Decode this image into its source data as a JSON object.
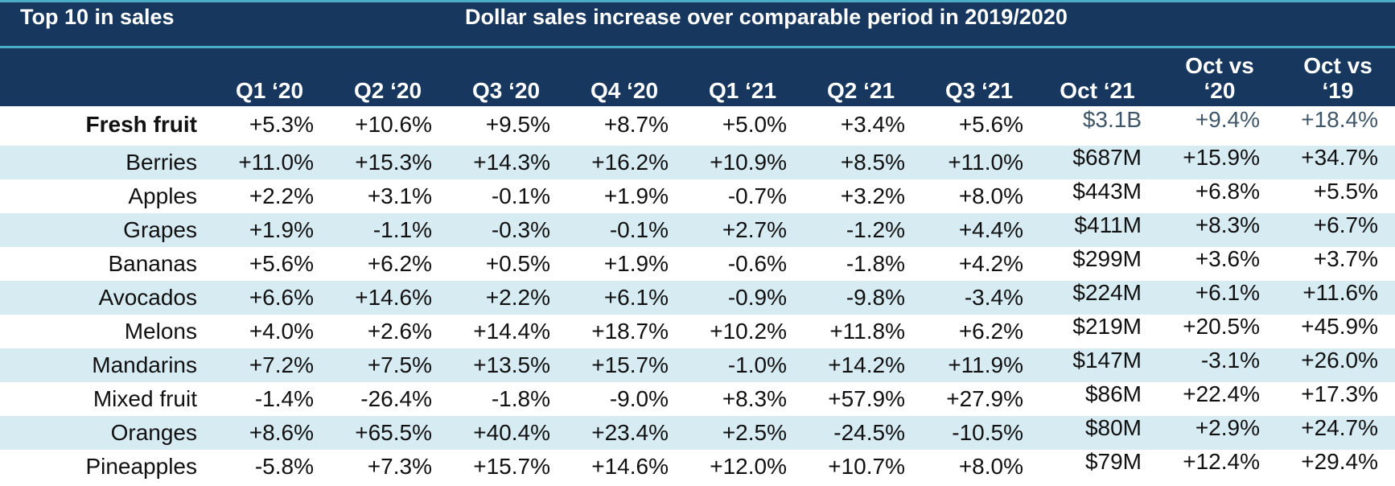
{
  "header": {
    "left_title": "Top 10 in sales",
    "main_title": "Dollar sales increase over comparable period in 2019/2020"
  },
  "colors": {
    "header_bg": "#17375e",
    "accent_line": "#4bacc6",
    "band": "#d7ebf2"
  },
  "chart_data": {
    "type": "table",
    "columns": [
      "Q1 ‘20",
      "Q2 ‘20",
      "Q3 ‘20",
      "Q4 ‘20",
      "Q1 ‘21",
      "Q2 ‘21",
      "Q3 ‘21",
      "Oct ‘21",
      "Oct vs ‘20",
      "Oct vs ‘19"
    ],
    "rows": [
      {
        "label": "Fresh fruit",
        "values": [
          "+5.3%",
          "+10.6%",
          "+9.5%",
          "+8.7%",
          "+5.0%",
          "+3.4%",
          "+5.6%",
          "$3.1B",
          "+9.4%",
          "+18.4%"
        ]
      },
      {
        "label": "Berries",
        "values": [
          "+11.0%",
          "+15.3%",
          "+14.3%",
          "+16.2%",
          "+10.9%",
          "+8.5%",
          "+11.0%",
          "$687M",
          "+15.9%",
          "+34.7%"
        ]
      },
      {
        "label": "Apples",
        "values": [
          "+2.2%",
          "+3.1%",
          "-0.1%",
          "+1.9%",
          "-0.7%",
          "+3.2%",
          "+8.0%",
          "$443M",
          "+6.8%",
          "+5.5%"
        ]
      },
      {
        "label": "Grapes",
        "values": [
          "+1.9%",
          "-1.1%",
          "-0.3%",
          "-0.1%",
          "+2.7%",
          "-1.2%",
          "+4.4%",
          "$411M",
          "+8.3%",
          "+6.7%"
        ]
      },
      {
        "label": "Bananas",
        "values": [
          "+5.6%",
          "+6.2%",
          "+0.5%",
          "+1.9%",
          "-0.6%",
          "-1.8%",
          "+4.2%",
          "$299M",
          "+3.6%",
          "+3.7%"
        ]
      },
      {
        "label": "Avocados",
        "values": [
          "+6.6%",
          "+14.6%",
          "+2.2%",
          "+6.1%",
          "-0.9%",
          "-9.8%",
          "-3.4%",
          "$224M",
          "+6.1%",
          "+11.6%"
        ]
      },
      {
        "label": "Melons",
        "values": [
          "+4.0%",
          "+2.6%",
          "+14.4%",
          "+18.7%",
          "+10.2%",
          "+11.8%",
          "+6.2%",
          "$219M",
          "+20.5%",
          "+45.9%"
        ]
      },
      {
        "label": "Mandarins",
        "values": [
          "+7.2%",
          "+7.5%",
          "+13.5%",
          "+15.7%",
          "-1.0%",
          "+14.2%",
          "+11.9%",
          "$147M",
          "-3.1%",
          "+26.0%"
        ]
      },
      {
        "label": "Mixed fruit",
        "values": [
          "-1.4%",
          "-26.4%",
          "-1.8%",
          "-9.0%",
          "+8.3%",
          "+57.9%",
          "+27.9%",
          "$86M",
          "+22.4%",
          "+17.3%"
        ]
      },
      {
        "label": "Oranges",
        "values": [
          "+8.6%",
          "+65.5%",
          "+40.4%",
          "+23.4%",
          "+2.5%",
          "-24.5%",
          "-10.5%",
          "$80M",
          "+2.9%",
          "+24.7%"
        ]
      },
      {
        "label": "Pineapples",
        "values": [
          "-5.8%",
          "+7.3%",
          "+15.7%",
          "+14.6%",
          "+12.0%",
          "+10.7%",
          "+8.0%",
          "$79M",
          "+12.4%",
          "+29.4%"
        ]
      }
    ]
  }
}
